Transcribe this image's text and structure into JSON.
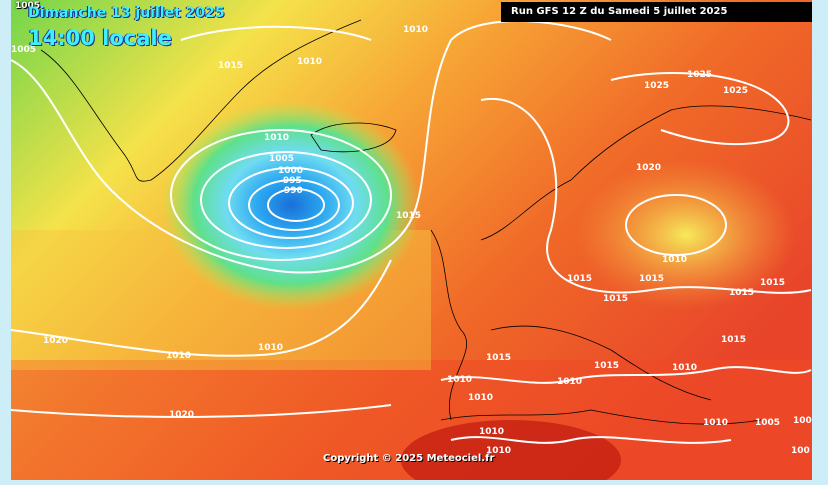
{
  "header": {
    "date": "Dimanche 13 juillet 2025",
    "time": "14:00 locale",
    "run": "Run GFS 12 Z du Samedi 5 juillet 2025"
  },
  "footer": {
    "copyright": "Copyright © 2025 Meteociel.fr"
  },
  "isobar_labels": [
    "1005",
    "1010",
    "1015",
    "1010",
    "1010",
    "1005",
    "1000",
    "995",
    "990",
    "1015",
    "1020",
    "1010",
    "1010",
    "1020",
    "1025",
    "1025",
    "1025",
    "1020",
    "1010",
    "1015",
    "1015",
    "1015",
    "1015",
    "1015",
    "1015",
    "1015",
    "1010",
    "1010",
    "1015",
    "1010",
    "1010",
    "1010",
    "1005",
    "100",
    "100",
    "1020"
  ]
}
